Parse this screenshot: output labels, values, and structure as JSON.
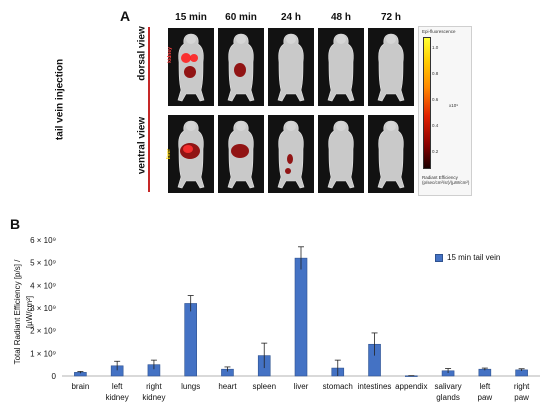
{
  "panel_a": {
    "letter": "A",
    "injection_label": "tail vein injection",
    "row_labels": [
      "dorsal view",
      "ventral view"
    ],
    "time_points": [
      "15 min",
      "60 min",
      "24 h",
      "48 h",
      "72 h"
    ],
    "organ_tags": [
      "kidney",
      "liver"
    ],
    "colorbar": {
      "title": "Epi-fluorescence",
      "ticks": [
        "1.0",
        "0.8",
        "0.6",
        "0.4",
        "0.2"
      ],
      "unit": "x10⁹",
      "caption_line1": "Radiant Efficiency",
      "caption_line2": "(p/sec/cm²/sr)/(µW/cm²)",
      "colors": [
        "#ffff33",
        "#ffcc00",
        "#ff8800",
        "#e02000",
        "#8b0000",
        "#1a0000"
      ]
    }
  },
  "chart_data": {
    "type": "bar",
    "letter": "B",
    "title": "",
    "ylabel_line1": "Total Radiant Efficiency [p/s] /",
    "ylabel_line2": "[µW/cm²]",
    "xlabel": "",
    "categories": [
      "brain",
      "left kidney",
      "right kidney",
      "lungs",
      "heart",
      "spleen",
      "liver",
      "stomach",
      "intestines",
      "appendix",
      "salivary glands",
      "left paw",
      "right paw"
    ],
    "series": [
      {
        "name": "15 min tail vein",
        "values": [
          160000000.0,
          450000000.0,
          500000000.0,
          3200000000.0,
          300000000.0,
          900000000.0,
          5200000000.0,
          350000000.0,
          1400000000.0,
          10000000.0,
          230000000.0,
          300000000.0,
          270000000.0
        ],
        "errors": [
          40000000.0,
          200000000.0,
          200000000.0,
          350000000.0,
          100000000.0,
          550000000.0,
          500000000.0,
          350000000.0,
          500000000.0,
          5000000.0,
          100000000.0,
          50000000.0,
          50000000.0
        ],
        "color": "#4472c4",
        "edge_color": "#2f528f"
      }
    ],
    "ylim": [
      0,
      6000000000.0
    ],
    "ytick_labels": [
      "0",
      "1 × 10⁹",
      "2 × 10⁹",
      "3 × 10⁹",
      "4 × 10⁹",
      "5 × 10⁹",
      "6 × 10⁹"
    ],
    "grid": false,
    "legend_position": "top-right"
  }
}
